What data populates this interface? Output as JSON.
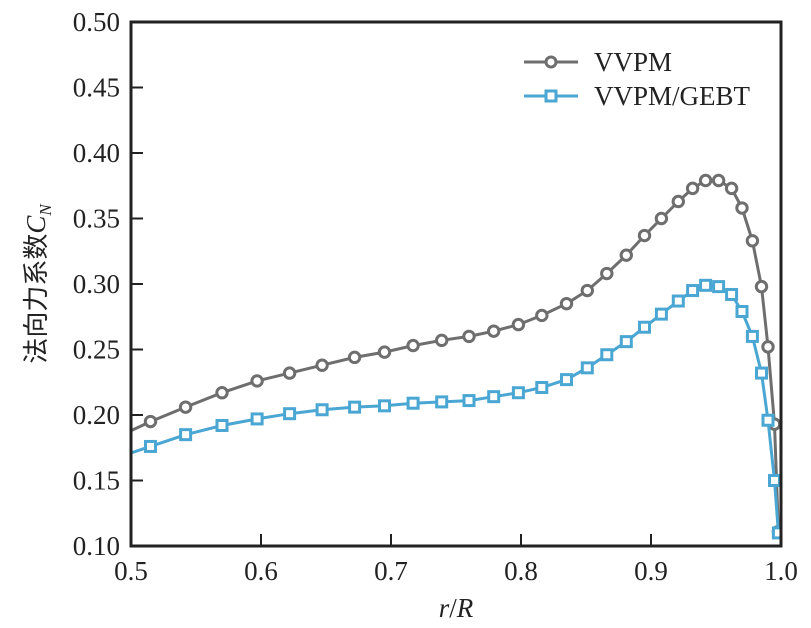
{
  "chart_data": {
    "type": "line",
    "title": "",
    "xlabel": "r/R",
    "ylabel": "法向力系数C_N",
    "ylabel_main": "法向力系数",
    "ylabel_symbol": "C",
    "ylabel_subscript": "N",
    "xlabel_r": "r",
    "xlabel_slash": "/",
    "xlabel_R": "R",
    "xlim": [
      0.5,
      1.0
    ],
    "ylim": [
      0.1,
      0.5
    ],
    "xticks": [
      0.5,
      0.6,
      0.7,
      0.8,
      0.9,
      1.0
    ],
    "xtick_labels": [
      "0.5",
      "0.6",
      "0.7",
      "0.8",
      "0.9",
      "1.0"
    ],
    "yticks": [
      0.1,
      0.15,
      0.2,
      0.25,
      0.3,
      0.35,
      0.4,
      0.45,
      0.5
    ],
    "ytick_labels": [
      "0.10",
      "0.15",
      "0.20",
      "0.25",
      "0.30",
      "0.35",
      "0.40",
      "0.45",
      "0.50"
    ],
    "grid": false,
    "legend_position": "top-right",
    "series": [
      {
        "name": "VVPM",
        "color": "#6e6e6e",
        "marker": "circle",
        "x": [
          0.5,
          0.515,
          0.542,
          0.57,
          0.597,
          0.622,
          0.647,
          0.672,
          0.695,
          0.717,
          0.739,
          0.76,
          0.779,
          0.798,
          0.816,
          0.835,
          0.851,
          0.866,
          0.881,
          0.895,
          0.908,
          0.921,
          0.932,
          0.942,
          0.952,
          0.962,
          0.97,
          0.978,
          0.985,
          0.99,
          0.995,
          0.998
        ],
        "values": [
          0.188,
          0.195,
          0.206,
          0.217,
          0.226,
          0.232,
          0.238,
          0.244,
          0.248,
          0.253,
          0.257,
          0.26,
          0.264,
          0.269,
          0.276,
          0.285,
          0.295,
          0.308,
          0.322,
          0.337,
          0.35,
          0.363,
          0.373,
          0.379,
          0.379,
          0.373,
          0.358,
          0.333,
          0.298,
          0.252,
          0.193,
          0.111
        ],
        "marker_from_index": 1
      },
      {
        "name": "VVPM/GEBT",
        "color": "#4aa6d2",
        "marker": "square",
        "x": [
          0.5,
          0.515,
          0.542,
          0.57,
          0.597,
          0.622,
          0.647,
          0.672,
          0.695,
          0.717,
          0.739,
          0.76,
          0.779,
          0.798,
          0.816,
          0.835,
          0.851,
          0.866,
          0.881,
          0.895,
          0.908,
          0.921,
          0.932,
          0.942,
          0.952,
          0.962,
          0.97,
          0.978,
          0.985,
          0.99,
          0.995,
          0.998
        ],
        "values": [
          0.171,
          0.176,
          0.185,
          0.192,
          0.197,
          0.201,
          0.204,
          0.206,
          0.207,
          0.209,
          0.21,
          0.211,
          0.214,
          0.217,
          0.221,
          0.227,
          0.236,
          0.246,
          0.256,
          0.267,
          0.277,
          0.287,
          0.295,
          0.299,
          0.298,
          0.292,
          0.279,
          0.26,
          0.232,
          0.196,
          0.15,
          0.11
        ],
        "marker_from_index": 1
      }
    ]
  }
}
